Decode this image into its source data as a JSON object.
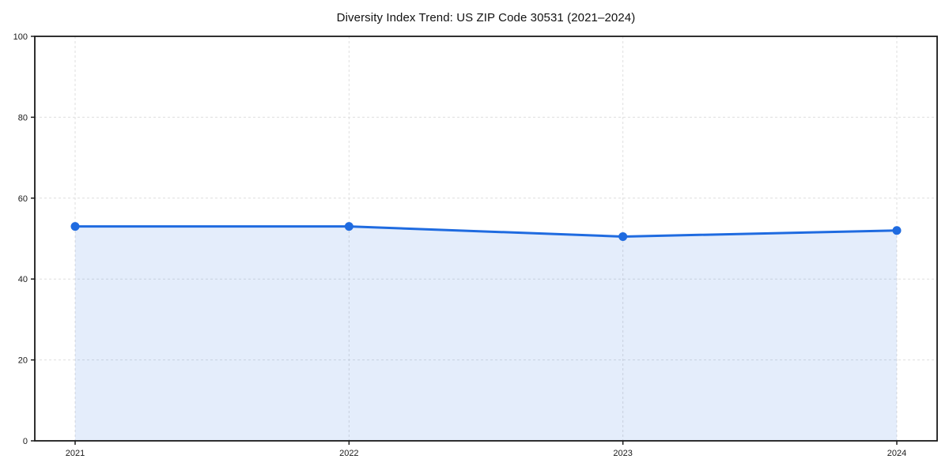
{
  "chart": {
    "title": "Diversity Index Trend: US ZIP Code 30531 (2021–2024)"
  },
  "chart_data": {
    "type": "area",
    "title": "Diversity Index Trend: US ZIP Code 30531 (2021–2024)",
    "categories": [
      "2021",
      "2022",
      "2023",
      "2024"
    ],
    "series": [
      {
        "name": "Diversity Index",
        "values": [
          53,
          53,
          50.5,
          52
        ]
      }
    ],
    "xlabel": "",
    "ylabel": "",
    "ylim": [
      0,
      100
    ],
    "yticks": [
      0,
      20,
      40,
      60,
      80,
      100
    ],
    "grid": true,
    "grid_style": "dashed",
    "legend_position": "none",
    "colors": {
      "line": "#1f6be0",
      "marker": "#1f6be0",
      "fill": "#1f6be0",
      "fill_opacity": 0.12,
      "gridline": "#dedede",
      "spine": "#1a1a1a",
      "tick_text": "#1a1a1a",
      "background": "#ffffff"
    }
  }
}
